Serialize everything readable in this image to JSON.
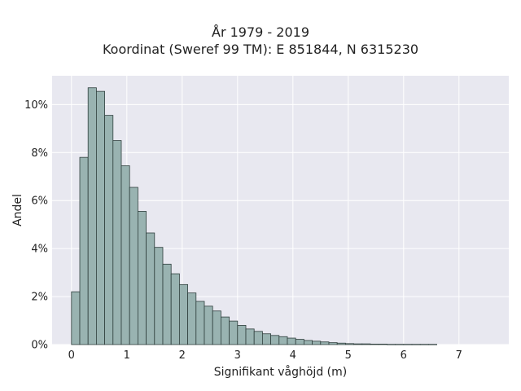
{
  "chart_data": {
    "type": "bar",
    "title_line1": "År 1979 - 2019",
    "title_line2": "Koordinat (Sweref 99 TM): E 851844, N 6315230",
    "xlabel": "Signifikant våghöjd (m)",
    "ylabel": "Andel",
    "xlim": [
      -0.35,
      7.9
    ],
    "ylim": [
      0,
      11.2
    ],
    "x_ticks": [
      0,
      1,
      2,
      3,
      4,
      5,
      6,
      7
    ],
    "y_ticks": [
      0,
      2,
      4,
      6,
      8,
      10
    ],
    "y_tick_suffix": "%",
    "grid": true,
    "bin_width": 0.15,
    "bin_start": 0.0,
    "values": [
      2.2,
      7.8,
      10.7,
      10.55,
      9.55,
      8.5,
      7.45,
      6.55,
      5.55,
      4.65,
      4.05,
      3.35,
      2.95,
      2.5,
      2.15,
      1.8,
      1.6,
      1.4,
      1.15,
      0.98,
      0.8,
      0.65,
      0.55,
      0.45,
      0.38,
      0.33,
      0.27,
      0.22,
      0.17,
      0.14,
      0.11,
      0.08,
      0.06,
      0.04,
      0.03,
      0.03,
      0.02,
      0.02,
      0.01,
      0.01,
      0.01,
      0.01,
      0.01,
      0.01
    ],
    "colors": {
      "bar_fill": "#99b3b1",
      "bar_stroke": "#2f3f3d",
      "plot_bg": "#e8e8f0",
      "grid": "#ffffff"
    }
  }
}
